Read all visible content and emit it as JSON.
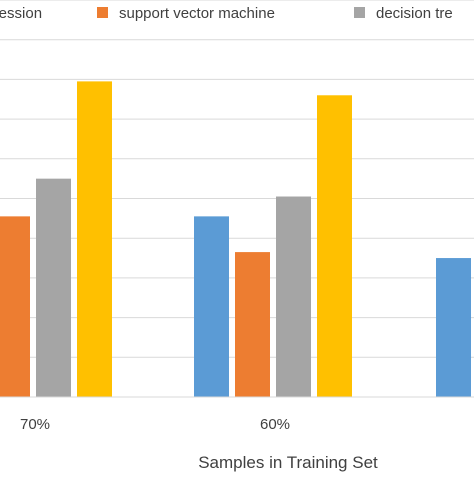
{
  "chart_data": {
    "type": "bar",
    "title": "",
    "xlabel": "Samples in Training Set",
    "ylabel": "",
    "ylim": [
      0,
      10
    ],
    "grid": true,
    "legend_position": "top",
    "categories": [
      "70%",
      "60%",
      ""
    ],
    "series": [
      {
        "name": "regression",
        "color": "#5b9bd5",
        "values": [
          null,
          4.55,
          3.5
        ]
      },
      {
        "name": "support vector machine",
        "color": "#ed7d31",
        "values": [
          4.55,
          3.65,
          null
        ]
      },
      {
        "name": "decision tre",
        "color": "#a5a5a5",
        "values": [
          5.5,
          5.05,
          null
        ]
      },
      {
        "name": "",
        "color": "#ffc000",
        "values": [
          7.95,
          7.6,
          null
        ]
      }
    ]
  }
}
